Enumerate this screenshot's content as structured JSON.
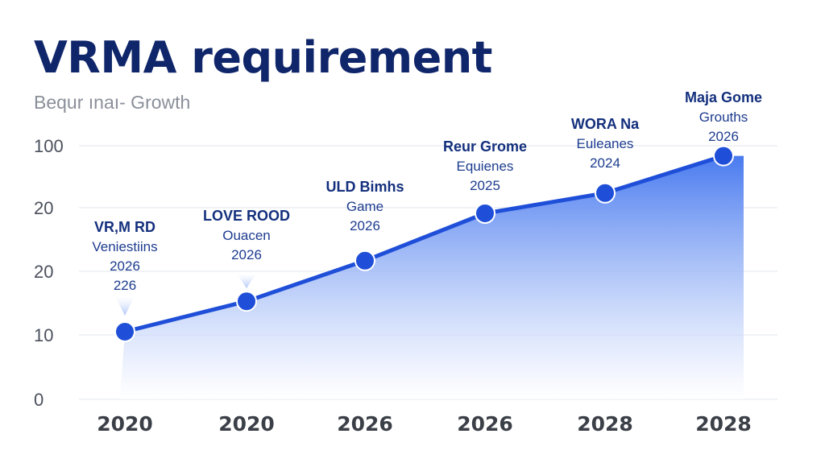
{
  "chart_data": {
    "type": "area",
    "title": "VRMA requirement",
    "subtitle": "Bequr ınaı- Growth",
    "y_tick_labels": [
      "100",
      "20",
      "20",
      "10",
      "0"
    ],
    "categories": [
      "2020",
      "2020",
      "2026",
      "2026",
      "2028",
      "2028"
    ],
    "series": [
      {
        "values": [
          10,
          14.5,
          20.5,
          27.5,
          30.5,
          36
        ]
      }
    ],
    "annotations": [
      {
        "lines": [
          "VR,M RD",
          "Veniestiins",
          "2026",
          "226"
        ]
      },
      {
        "lines": [
          "LOVE ROOD",
          "Ouacen",
          "2026"
        ]
      },
      {
        "lines": [
          "ULD Bimhs",
          "Game",
          "2026"
        ]
      },
      {
        "lines": [
          "Reur Grome",
          "Equienes",
          "2025"
        ]
      },
      {
        "lines": [
          "WORA Na",
          "Euleanes",
          "2024"
        ]
      },
      {
        "lines": [
          "Maja Gome",
          "Grouths",
          "2026"
        ]
      }
    ],
    "grid": true,
    "legend": "none",
    "colors": {
      "line": "#1f4fd8",
      "fill_top": "#4a7cf0",
      "fill_bottom": "#ffffff",
      "grid": "#e6e9ef"
    }
  }
}
